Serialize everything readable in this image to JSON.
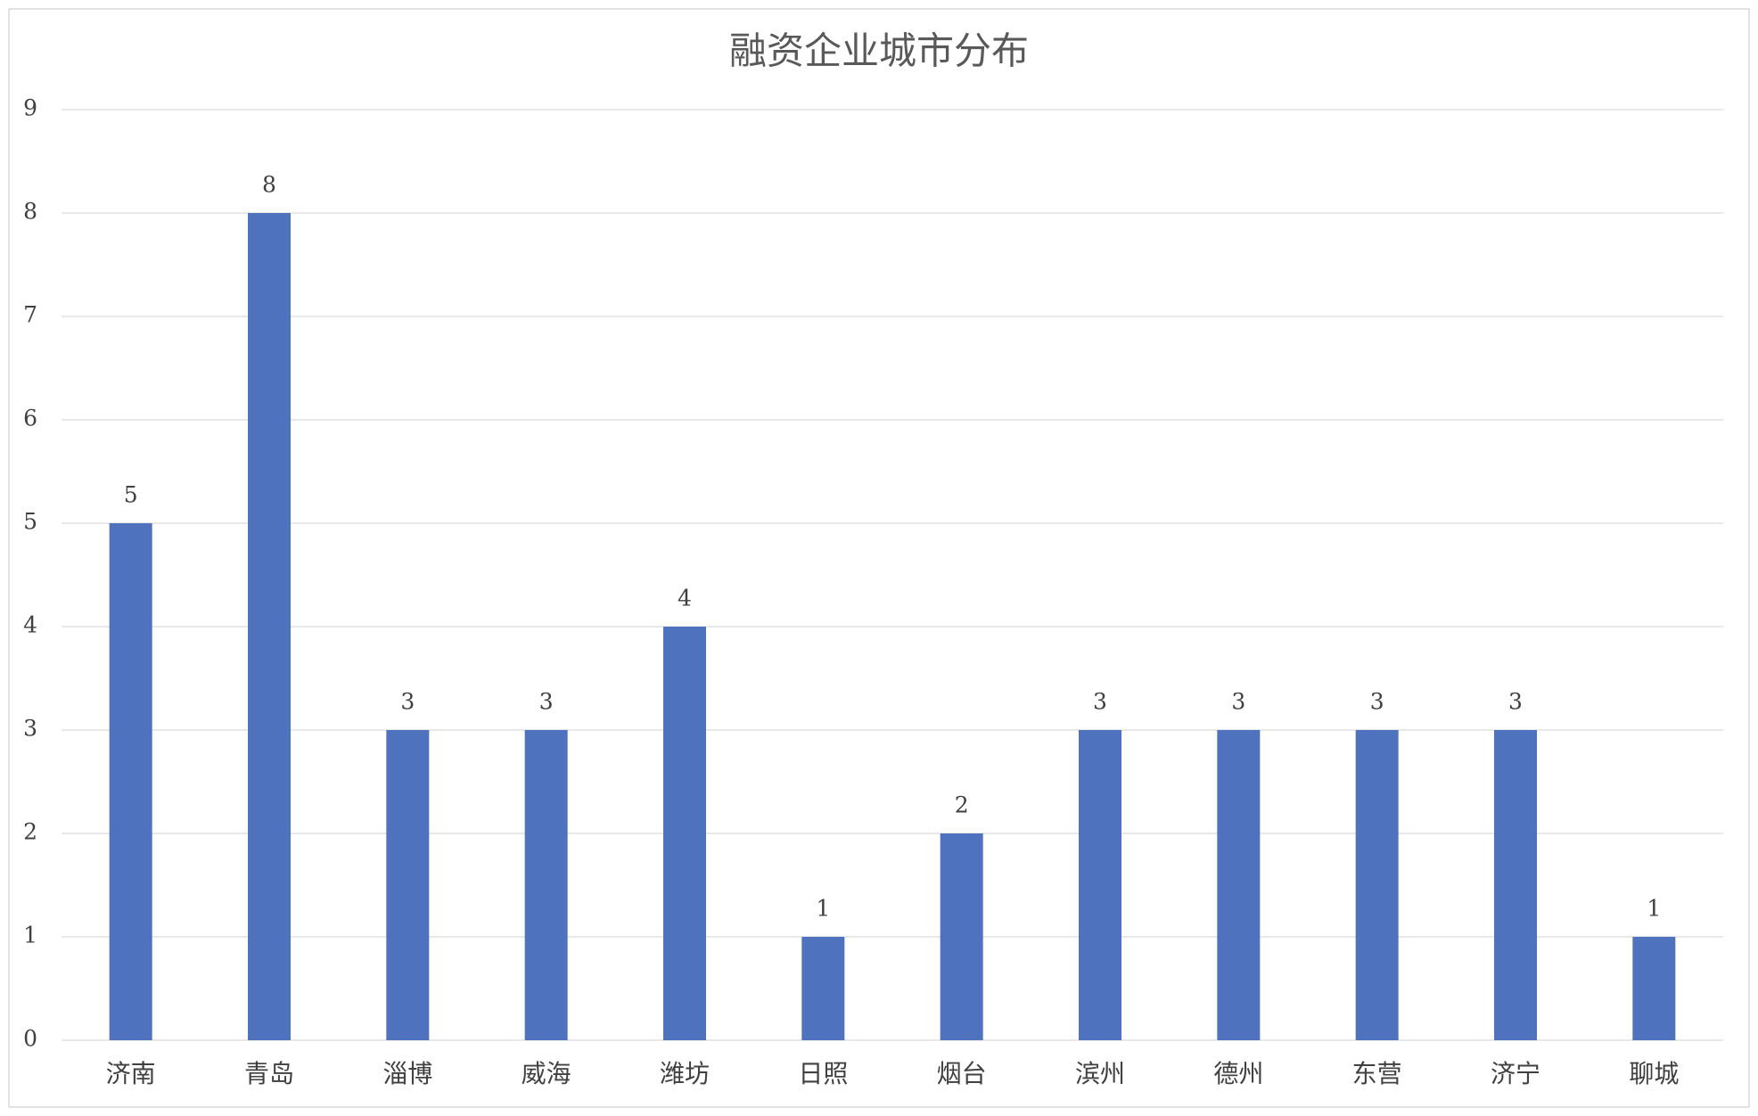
{
  "chart_data": {
    "type": "bar",
    "title": "融资企业城市分布",
    "categories": [
      "济南",
      "青岛",
      "淄博",
      "威海",
      "潍坊",
      "日照",
      "烟台",
      "滨州",
      "德州",
      "东营",
      "济宁",
      "聊城"
    ],
    "values": [
      5,
      8,
      3,
      3,
      4,
      1,
      2,
      3,
      3,
      3,
      3,
      1
    ],
    "color": "#4e72be",
    "ylim": [
      0,
      9
    ],
    "yticks": [
      0,
      1,
      2,
      3,
      4,
      5,
      6,
      7,
      8,
      9
    ],
    "grid": true
  }
}
